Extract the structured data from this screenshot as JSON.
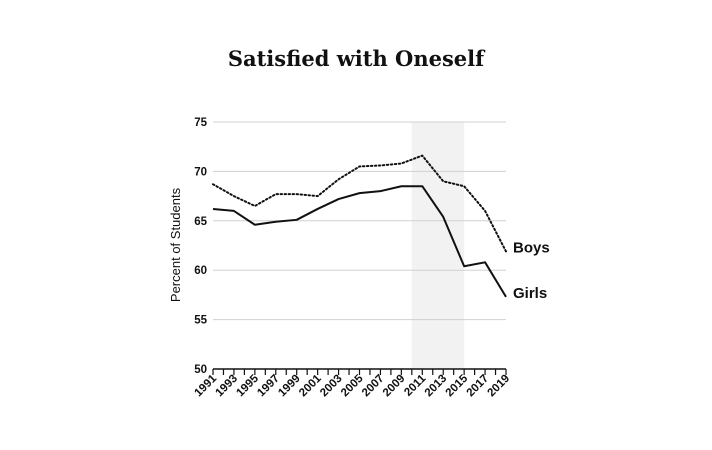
{
  "chart_data": {
    "type": "line",
    "title": "Satisfied with Oneself",
    "xlabel": "",
    "ylabel": "Percent of Students",
    "ylim": [
      50,
      75
    ],
    "yticks": [
      50,
      55,
      60,
      65,
      70,
      75
    ],
    "grid": "horizontal",
    "x": [
      1991,
      1993,
      1995,
      1997,
      1999,
      2001,
      2003,
      2005,
      2007,
      2009,
      2011,
      2013,
      2015,
      2017,
      2019
    ],
    "xtick_labels": [
      "1991",
      "1993",
      "1995",
      "1997",
      "1999",
      "2001",
      "2003",
      "2005",
      "2007",
      "2009",
      "2011",
      "2013",
      "2015",
      "2017",
      "2019"
    ],
    "shaded_region": [
      2010,
      2015
    ],
    "series": [
      {
        "name": "Boys",
        "style": "dotted",
        "values": [
          68.7,
          67.5,
          66.5,
          67.7,
          67.7,
          67.5,
          69.2,
          70.5,
          70.6,
          70.8,
          71.6,
          69.0,
          68.5,
          66.0,
          61.9
        ]
      },
      {
        "name": "Girls",
        "style": "solid",
        "values": [
          66.2,
          66.0,
          64.6,
          64.9,
          65.1,
          66.2,
          67.2,
          67.8,
          68.0,
          68.5,
          68.5,
          65.4,
          60.4,
          60.8,
          57.3
        ]
      }
    ]
  }
}
